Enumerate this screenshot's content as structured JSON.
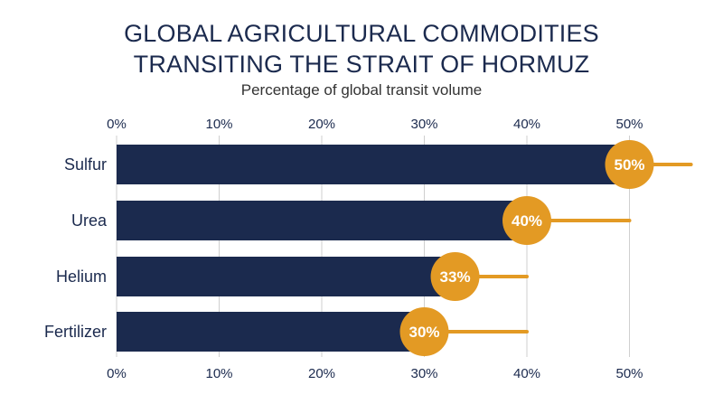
{
  "chart_data": {
    "type": "bar",
    "orientation": "horizontal",
    "title_lines": [
      "GLOBAL AGRICULTURAL COMMODITIES",
      "TRANSITING THE STRAIT OF HORMUZ"
    ],
    "subtitle": "Percentage of global transit volume",
    "categories": [
      "Sulfur",
      "Urea",
      "Helium",
      "Fertilizer"
    ],
    "values": [
      50,
      40,
      33,
      30
    ],
    "data_labels": [
      "50%",
      "40%",
      "33%",
      "30%"
    ],
    "lollipop_end": [
      56,
      50,
      40,
      40
    ],
    "xlim": [
      0,
      56
    ],
    "xticks": [
      0,
      10,
      20,
      30,
      40,
      50
    ],
    "xtick_labels": [
      "0%",
      "10%",
      "20%",
      "30%",
      "40%",
      "50%"
    ],
    "xlabel": "",
    "ylabel": "",
    "grid": true,
    "colors": {
      "bar": "#1b2a4e",
      "accent": "#e39a24",
      "grid": "#cfcfcf",
      "text": "#1b2a4e",
      "label_text": "#ffffff"
    }
  }
}
